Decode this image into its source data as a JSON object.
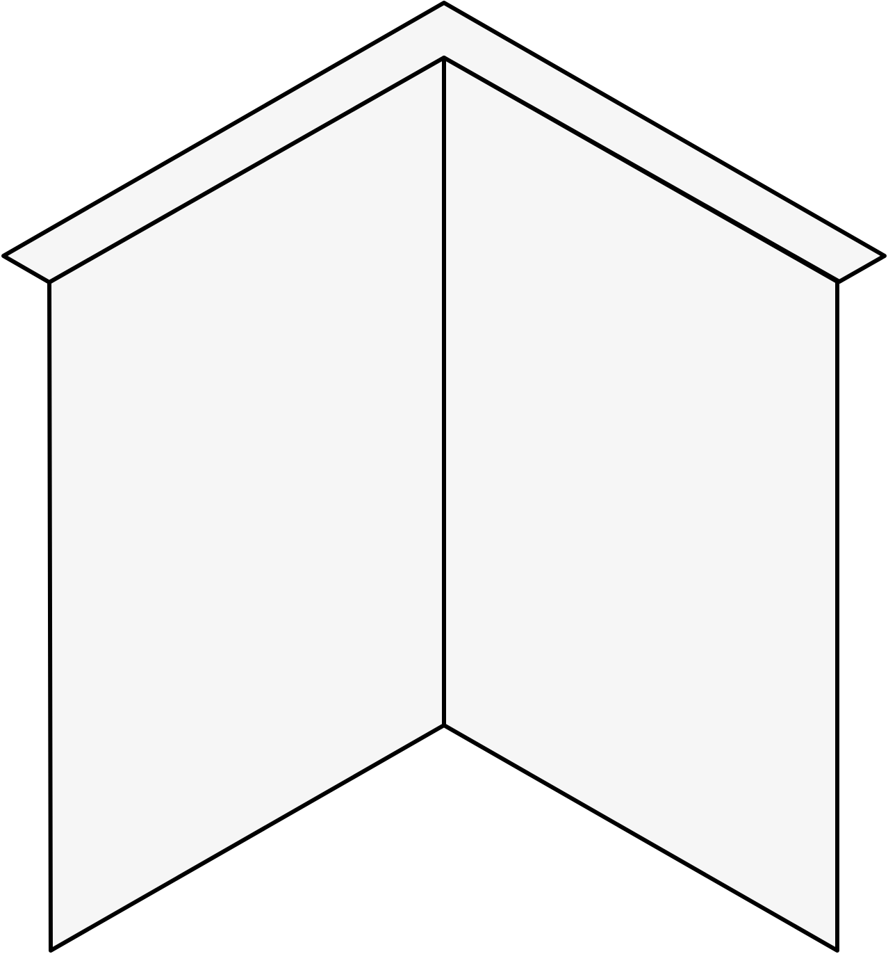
{
  "diagram": {
    "type": "isometric-inside-corner-trim",
    "parts": [
      {
        "name": "cap-trim",
        "description_visible": false
      },
      {
        "name": "left-wall-panel"
      },
      {
        "name": "right-wall-panel"
      },
      {
        "name": "corner-seam"
      }
    ],
    "colors": {
      "panel_fill": "#f6f6f6",
      "outline": "#000000",
      "background": "#ffffff"
    }
  }
}
